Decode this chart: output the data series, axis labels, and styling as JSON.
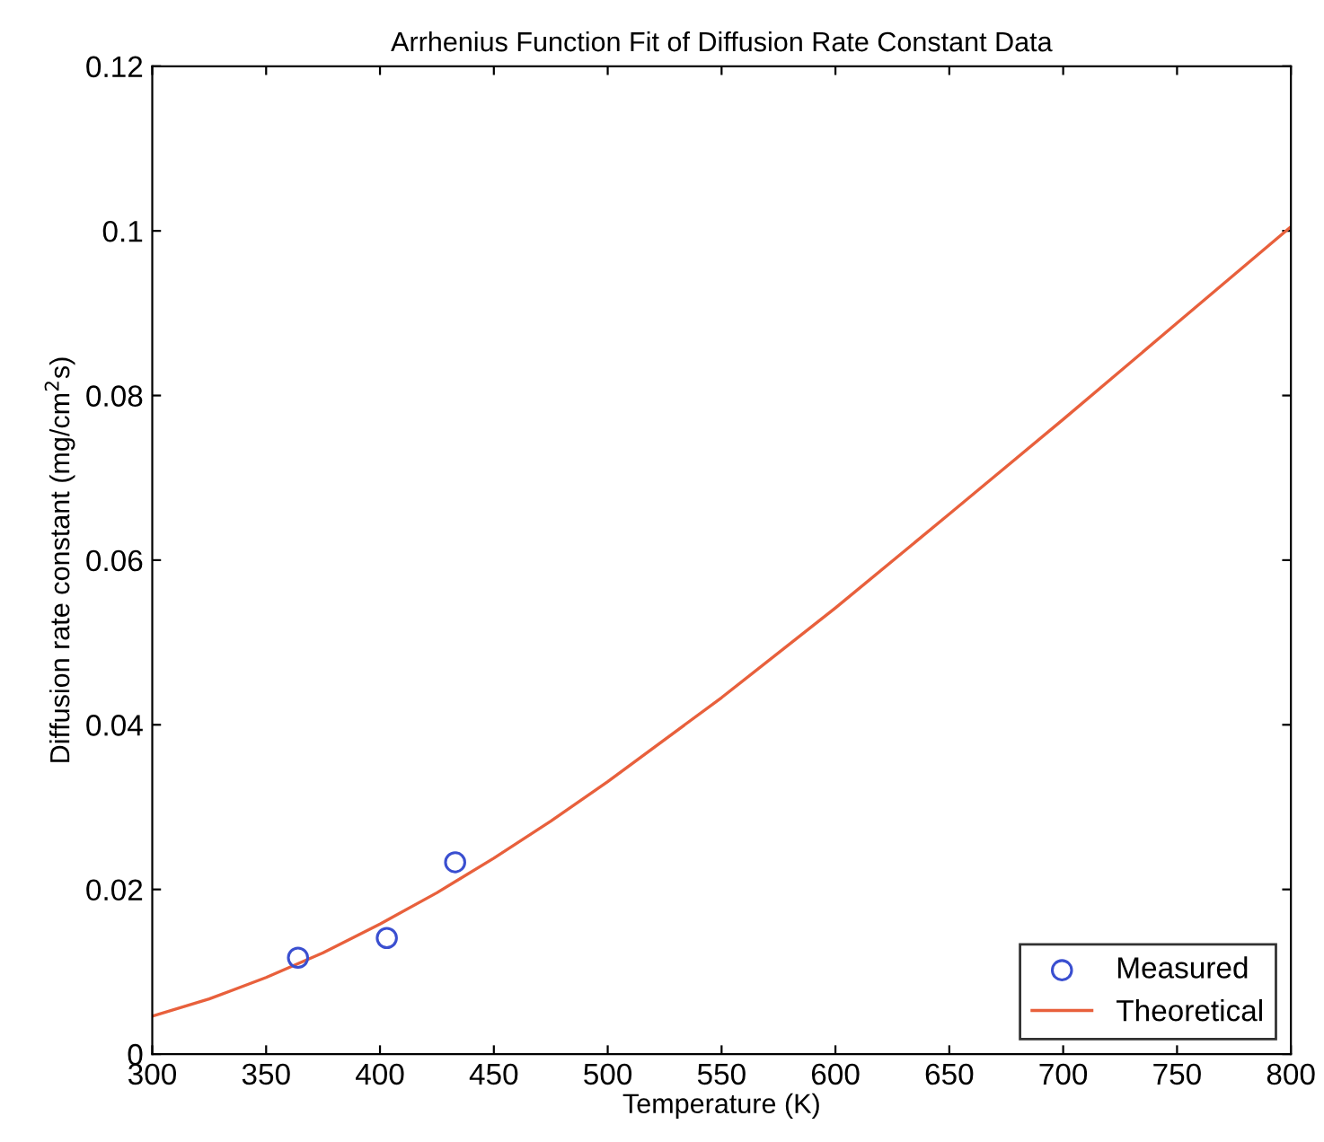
{
  "chart_data": {
    "type": "scatter",
    "title": "Arrhenius Function Fit of Diffusion Rate Constant Data",
    "xlabel": "Temperature (K)",
    "ylabel": "Diffusion rate constant (mg/cm$^{2}$s)",
    "series": [
      {
        "name": "Measured",
        "marker": "circle",
        "color": "#3a4fd0",
        "x": [
          364,
          403,
          433
        ],
        "values": [
          0.0117,
          0.0141,
          0.0233
        ]
      },
      {
        "name": "Theoretical",
        "type": "line",
        "marker": "none",
        "color": "#e8603c",
        "x": [
          300,
          325,
          350,
          375,
          400,
          425,
          450,
          475,
          500,
          550,
          600,
          650,
          700,
          750,
          800
        ],
        "values": [
          0.0046,
          0.0067,
          0.0093,
          0.0123,
          0.0158,
          0.0196,
          0.0238,
          0.0283,
          0.0331,
          0.0433,
          0.0542,
          0.0656,
          0.0771,
          0.0888,
          0.1005
        ]
      }
    ],
    "line_style": "solid",
    "xlim": [
      300,
      800
    ],
    "ylim": [
      0,
      0.12
    ],
    "xticks": [
      300,
      350,
      400,
      450,
      500,
      550,
      600,
      650,
      700,
      750,
      800
    ],
    "yticks": [
      0,
      0.02,
      0.04,
      0.06,
      0.08,
      0.1,
      0.12
    ],
    "grid": false,
    "legend": "bottom right"
  }
}
